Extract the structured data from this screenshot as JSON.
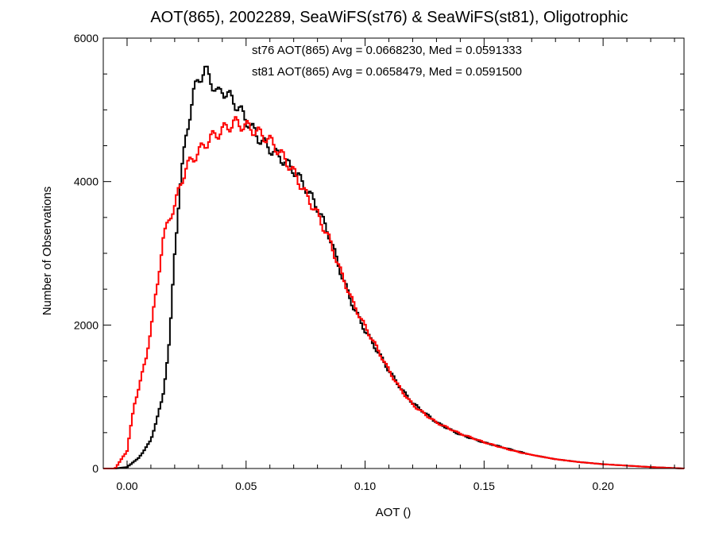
{
  "chart_data": {
    "type": "line",
    "title": "AOT(865), 2002289, SeaWiFS(st76) & SeaWiFS(st81), Oligotrophic",
    "xlabel": "AOT ()",
    "ylabel": "Number of Observations",
    "xlim": [
      -0.01,
      0.234
    ],
    "ylim": [
      0,
      6000
    ],
    "x_ticks": [
      {
        "value": 0.0,
        "label": "0.00"
      },
      {
        "value": 0.05,
        "label": "0.05"
      },
      {
        "value": 0.1,
        "label": "0.10"
      },
      {
        "value": 0.15,
        "label": "0.15"
      },
      {
        "value": 0.2,
        "label": "0.20"
      }
    ],
    "y_ticks": [
      {
        "value": 0,
        "label": "0"
      },
      {
        "value": 2000,
        "label": "2000"
      },
      {
        "value": 4000,
        "label": "4000"
      },
      {
        "value": 6000,
        "label": "6000"
      }
    ],
    "grid": false,
    "legend_position": "top-center",
    "series": [
      {
        "name": "st76",
        "label": "st76 AOT(865) Avg = 0.0668230, Med = 0.0591333",
        "color": "#000000",
        "x": [
          -0.005,
          0.0,
          0.005,
          0.01,
          0.015,
          0.018,
          0.02,
          0.022,
          0.025,
          0.028,
          0.03,
          0.033,
          0.035,
          0.038,
          0.04,
          0.045,
          0.05,
          0.055,
          0.06,
          0.065,
          0.07,
          0.075,
          0.08,
          0.085,
          0.09,
          0.095,
          0.1,
          0.105,
          0.11,
          0.115,
          0.12,
          0.13,
          0.14,
          0.15,
          0.16,
          0.17,
          0.18,
          0.19,
          0.2,
          0.21,
          0.22,
          0.234
        ],
        "y": [
          0,
          20,
          150,
          400,
          1000,
          1850,
          3000,
          3850,
          4650,
          5150,
          5350,
          5450,
          5350,
          5150,
          5250,
          5150,
          4950,
          4700,
          4500,
          4300,
          4100,
          3850,
          3600,
          3250,
          2750,
          2300,
          1950,
          1650,
          1350,
          1100,
          900,
          650,
          480,
          360,
          270,
          190,
          130,
          90,
          60,
          40,
          20,
          0
        ]
      },
      {
        "name": "st81",
        "label": "st81 AOT(865) Avg = 0.0658479, Med = 0.0591500",
        "color": "#ff0000",
        "x": [
          -0.005,
          0.0,
          0.003,
          0.005,
          0.008,
          0.01,
          0.013,
          0.015,
          0.018,
          0.02,
          0.023,
          0.025,
          0.028,
          0.03,
          0.033,
          0.035,
          0.04,
          0.045,
          0.05,
          0.055,
          0.06,
          0.065,
          0.07,
          0.075,
          0.08,
          0.085,
          0.09,
          0.095,
          0.1,
          0.105,
          0.11,
          0.115,
          0.12,
          0.13,
          0.14,
          0.15,
          0.16,
          0.17,
          0.18,
          0.19,
          0.2,
          0.21,
          0.22,
          0.234
        ],
        "y": [
          0,
          250,
          900,
          1150,
          1550,
          1950,
          2600,
          3150,
          3450,
          3600,
          3950,
          4150,
          4300,
          4400,
          4550,
          4650,
          4800,
          4900,
          4800,
          4650,
          4500,
          4300,
          4100,
          3850,
          3600,
          3250,
          2750,
          2300,
          1950,
          1650,
          1350,
          1100,
          900,
          650,
          480,
          360,
          270,
          190,
          130,
          90,
          60,
          40,
          20,
          0
        ]
      }
    ]
  }
}
